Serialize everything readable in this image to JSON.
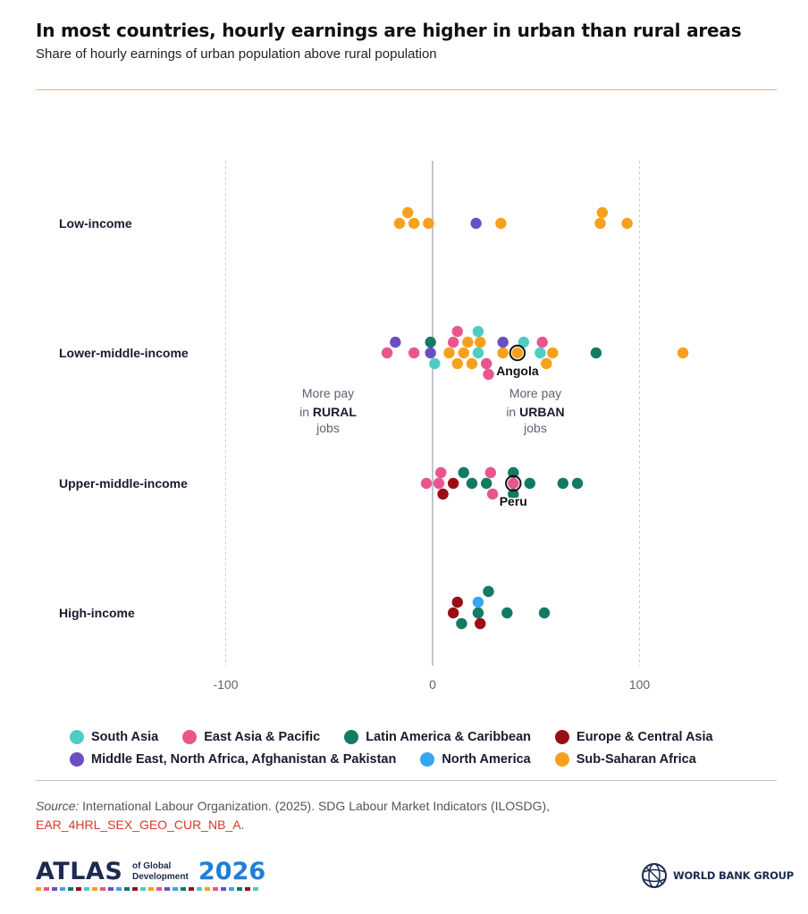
{
  "header": {
    "title": "In most countries, hourly earnings are higher in urban than rural areas",
    "subtitle": "Share of hourly earnings of urban population above rural population"
  },
  "annotations": {
    "rural_line1": "More pay",
    "rural_in": "in ",
    "rural_word": "RURAL",
    "rural_line3": "jobs",
    "urban_line1": "More pay",
    "urban_in": "in ",
    "urban_word": "URBAN",
    "urban_line3": "jobs"
  },
  "colors": {
    "South Asia": "#4ecdc4",
    "East Asia & Pacific": "#e8568d",
    "Latin America & Caribbean": "#137a63",
    "Europe & Central Asia": "#9b0d14",
    "Middle East, North Africa, Afghanistan & Pakistan": "#6a4fc3",
    "North America": "#37a6f0",
    "Sub-Saharan Africa": "#f7a01d"
  },
  "legend": {
    "row1": [
      "South Asia",
      "East Asia & Pacific",
      "Latin America & Caribbean",
      "Europe & Central Asia"
    ],
    "row2": [
      "Middle East, North Africa, Afghanistan & Pakistan",
      "North America",
      "Sub-Saharan Africa"
    ]
  },
  "chart_data": {
    "type": "scatter",
    "title": "In most countries, hourly earnings are higher in urban than rural areas",
    "subtitle": "Share of hourly earnings of urban population above rural population",
    "xlabel": "",
    "ylabel": "",
    "xlim": [
      -100,
      100
    ],
    "xticks": [
      "-100",
      "0",
      "100"
    ],
    "grid": "vertical dashed lines at -100 and 100, solid line at 0",
    "legend_position": "bottom",
    "categories": [
      "Low-income",
      "Lower-middle-income",
      "Upper-middle-income",
      "High-income"
    ],
    "highlighted": [
      {
        "label": "Angola",
        "category": "Lower-middle-income",
        "x": 41
      },
      {
        "label": "Peru",
        "category": "Upper-middle-income",
        "x": 39
      }
    ],
    "series": [
      {
        "name": "Sub-Saharan Africa",
        "points": [
          {
            "category": "Low-income",
            "x": -16
          },
          {
            "category": "Low-income",
            "x": -9
          },
          {
            "category": "Low-income",
            "x": -2
          },
          {
            "category": "Low-income",
            "x": -12
          },
          {
            "category": "Low-income",
            "x": 33
          },
          {
            "category": "Low-income",
            "x": 81
          },
          {
            "category": "Low-income",
            "x": 94
          },
          {
            "category": "Low-income",
            "x": 82
          },
          {
            "category": "Lower-middle-income",
            "x": 12
          },
          {
            "category": "Lower-middle-income",
            "x": 23
          },
          {
            "category": "Lower-middle-income",
            "x": 8
          },
          {
            "category": "Lower-middle-income",
            "x": 15
          },
          {
            "category": "Lower-middle-income",
            "x": 19
          },
          {
            "category": "Lower-middle-income",
            "x": 34
          },
          {
            "category": "Lower-middle-income",
            "x": 41
          },
          {
            "category": "Lower-middle-income",
            "x": 58
          },
          {
            "category": "Lower-middle-income",
            "x": 17
          },
          {
            "category": "Lower-middle-income",
            "x": 55
          },
          {
            "category": "Lower-middle-income",
            "x": 121
          }
        ]
      },
      {
        "name": "Middle East, North Africa, Afghanistan & Pakistan",
        "points": [
          {
            "category": "Low-income",
            "x": 21
          },
          {
            "category": "Lower-middle-income",
            "x": -1
          },
          {
            "category": "Lower-middle-income",
            "x": -18
          },
          {
            "category": "Lower-middle-income",
            "x": 34
          }
        ]
      },
      {
        "name": "East Asia & Pacific",
        "points": [
          {
            "category": "Lower-middle-income",
            "x": -22
          },
          {
            "category": "Lower-middle-income",
            "x": -9
          },
          {
            "category": "Lower-middle-income",
            "x": 27
          },
          {
            "category": "Lower-middle-income",
            "x": 53
          },
          {
            "category": "Lower-middle-income",
            "x": 12
          },
          {
            "category": "Lower-middle-income",
            "x": 26
          },
          {
            "category": "Lower-middle-income",
            "x": 10
          },
          {
            "category": "Upper-middle-income",
            "x": 4
          },
          {
            "category": "Upper-middle-income",
            "x": 28
          },
          {
            "category": "Upper-middle-income",
            "x": -3
          },
          {
            "category": "Upper-middle-income",
            "x": 3
          },
          {
            "category": "Upper-middle-income",
            "x": 29
          },
          {
            "category": "Upper-middle-income",
            "x": 39
          }
        ]
      },
      {
        "name": "Latin America & Caribbean",
        "points": [
          {
            "category": "Lower-middle-income",
            "x": -1
          },
          {
            "category": "Lower-middle-income",
            "x": 79
          },
          {
            "category": "Upper-middle-income",
            "x": 39
          },
          {
            "category": "Upper-middle-income",
            "x": 19
          },
          {
            "category": "Upper-middle-income",
            "x": 26
          },
          {
            "category": "Upper-middle-income",
            "x": 47
          },
          {
            "category": "Upper-middle-income",
            "x": 63
          },
          {
            "category": "Upper-middle-income",
            "x": 70
          },
          {
            "category": "Upper-middle-income",
            "x": 15
          },
          {
            "category": "Upper-middle-income",
            "x": 39
          },
          {
            "category": "High-income",
            "x": 36
          },
          {
            "category": "High-income",
            "x": 54
          },
          {
            "category": "High-income",
            "x": 14
          },
          {
            "category": "High-income",
            "x": 27
          },
          {
            "category": "High-income",
            "x": 22
          }
        ]
      },
      {
        "name": "South Asia",
        "points": [
          {
            "category": "Lower-middle-income",
            "x": 22
          },
          {
            "category": "Lower-middle-income",
            "x": 52
          },
          {
            "category": "Lower-middle-income",
            "x": 1
          },
          {
            "category": "Lower-middle-income",
            "x": 44
          },
          {
            "category": "Lower-middle-income",
            "x": 22
          }
        ]
      },
      {
        "name": "Europe & Central Asia",
        "points": [
          {
            "category": "Upper-middle-income",
            "x": 10
          },
          {
            "category": "Upper-middle-income",
            "x": 5
          },
          {
            "category": "High-income",
            "x": 12
          },
          {
            "category": "High-income",
            "x": 23
          },
          {
            "category": "High-income",
            "x": 10
          }
        ]
      },
      {
        "name": "North America",
        "points": [
          {
            "category": "High-income",
            "x": 22
          }
        ]
      }
    ]
  },
  "footer": {
    "source_label": "Source:",
    "source_text": " International Labour Organization. (2025). SDG Labour Market Indicators (ILOSDG),",
    "source_link": "EAR_4HRL_SEX_GEO_CUR_NB_A",
    "source_end": "."
  },
  "branding": {
    "atlas_word": "ATLAS",
    "atlas_of_1": "of Global",
    "atlas_of_2": "Development",
    "atlas_year": "2026",
    "wbg": "WORLD BANK GROUP"
  }
}
